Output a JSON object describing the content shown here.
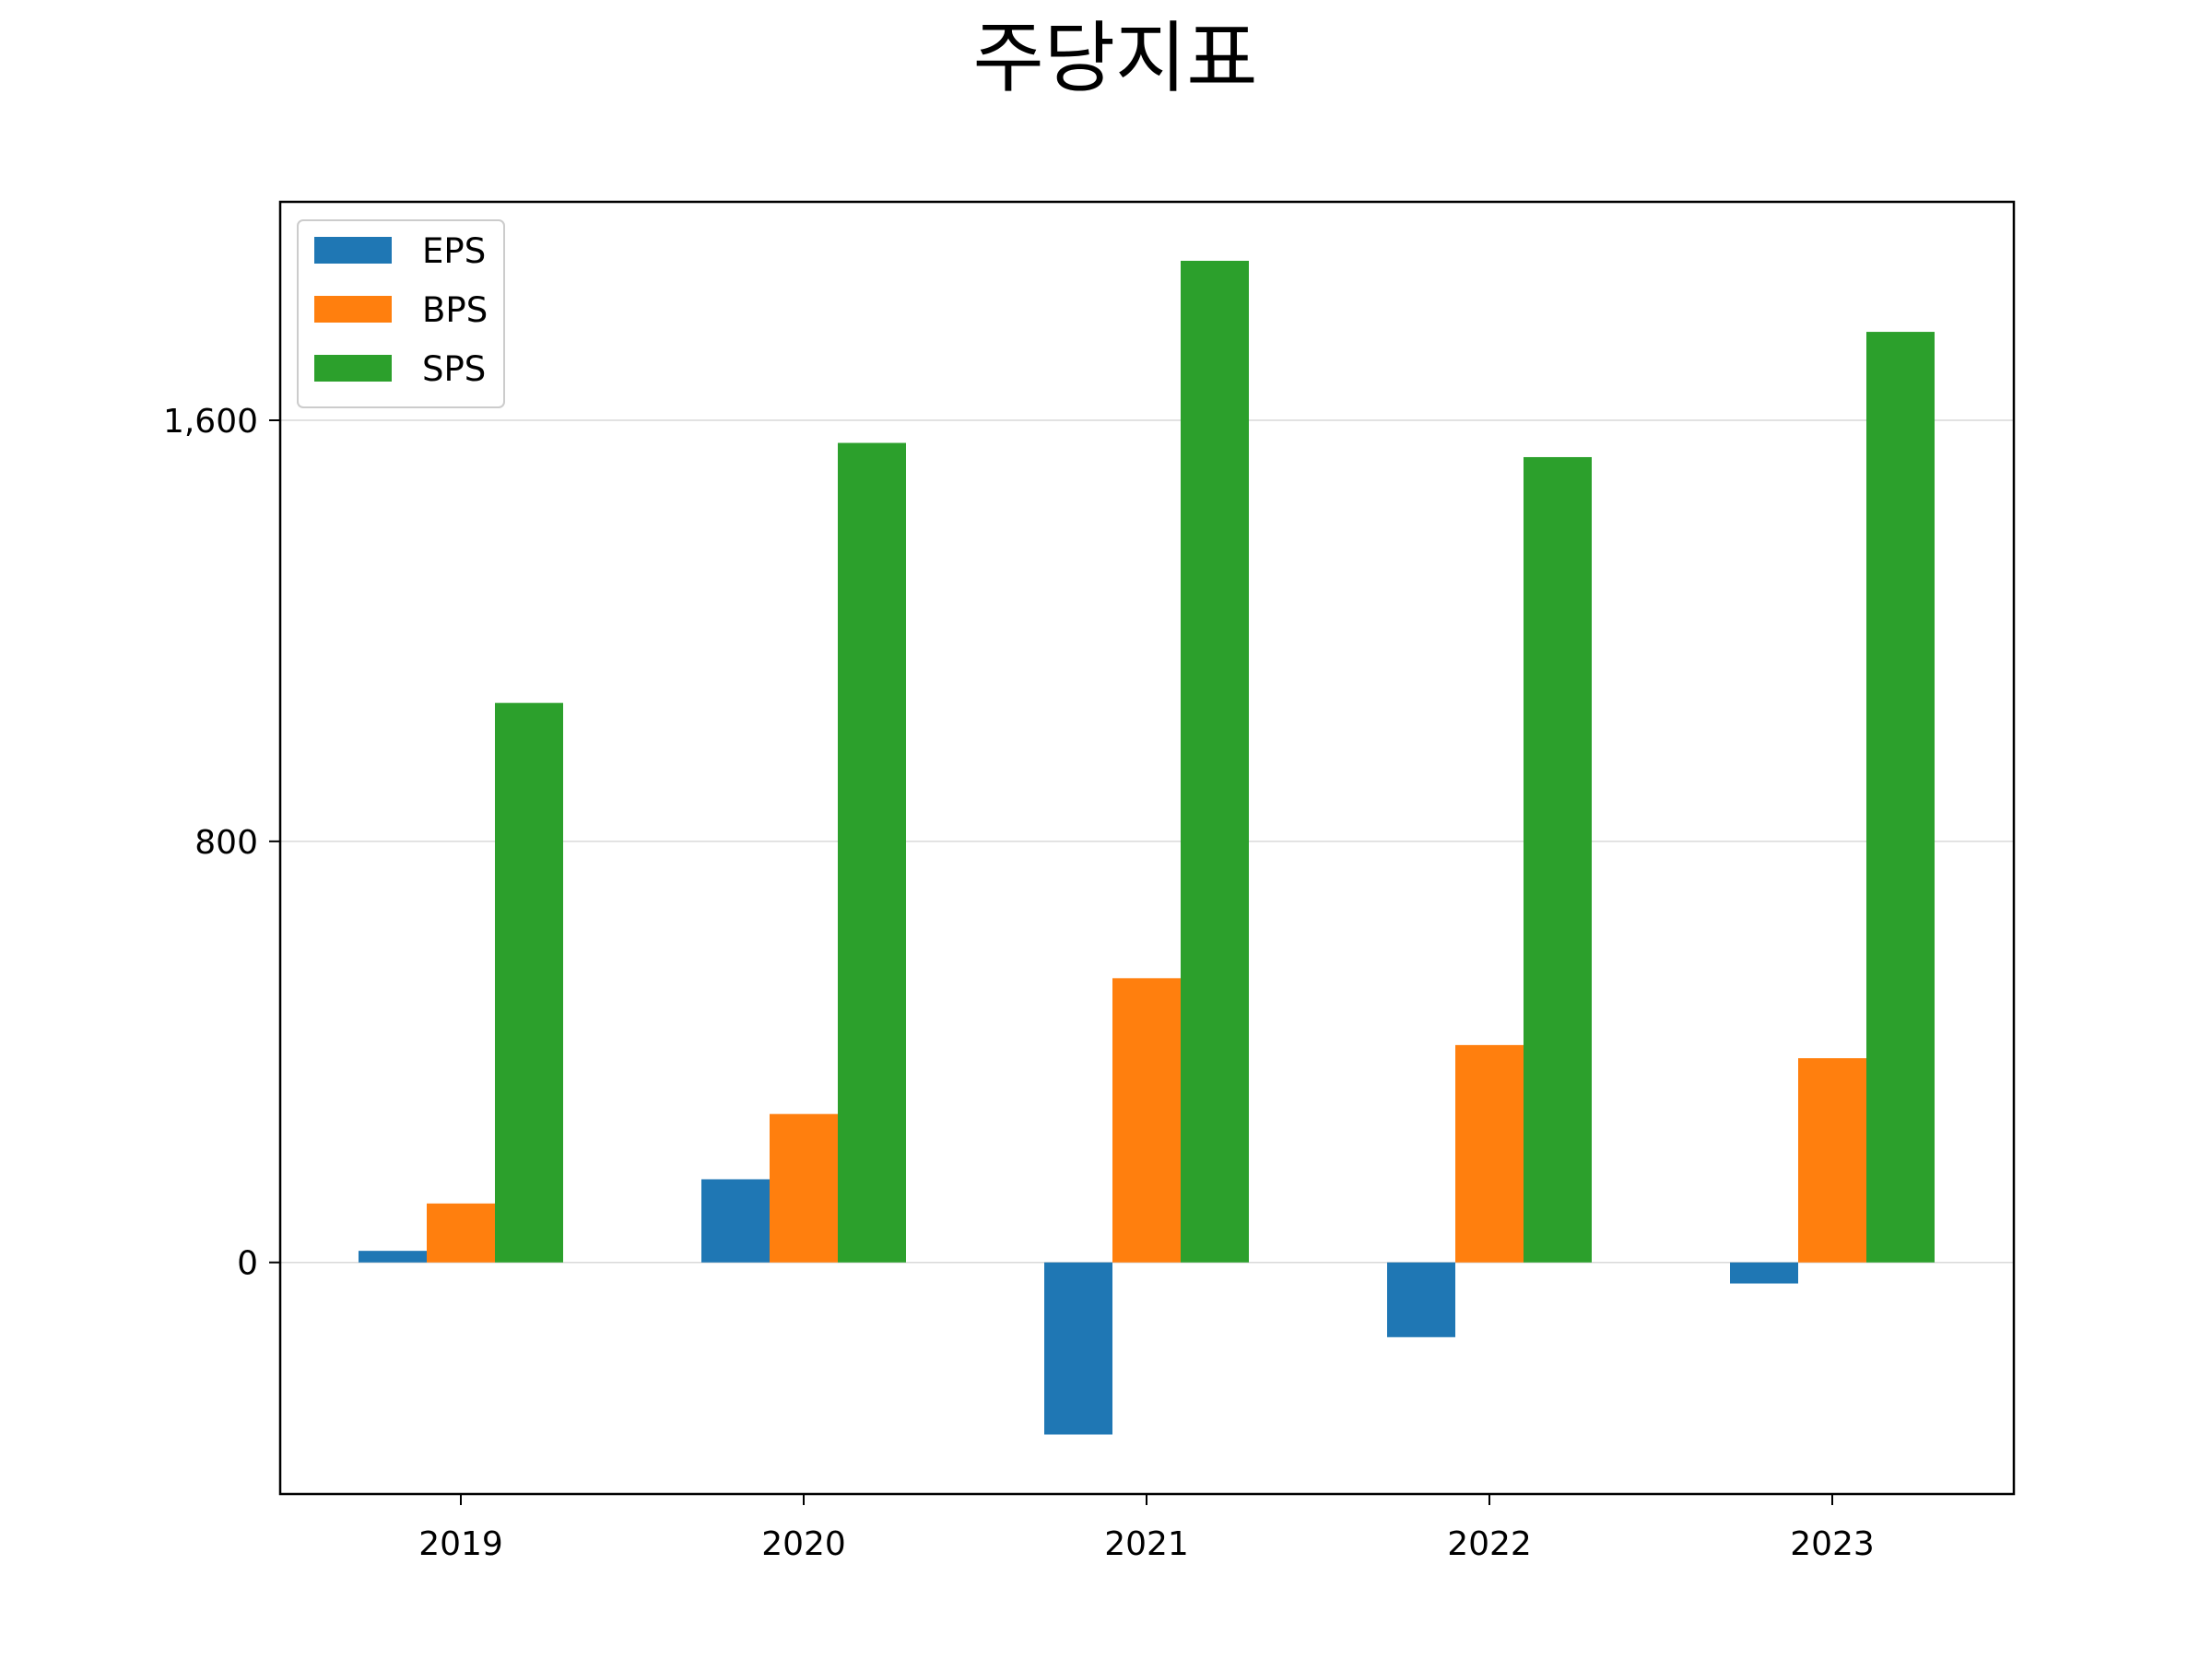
{
  "chart_data": {
    "type": "bar",
    "title": "주당지표",
    "xlabel": "",
    "ylabel": "",
    "categories": [
      "2019",
      "2020",
      "2021",
      "2022",
      "2023"
    ],
    "series": [
      {
        "name": "EPS",
        "color": "#1f77b4",
        "values": [
          22,
          158,
          -327,
          -142,
          -40
        ]
      },
      {
        "name": "BPS",
        "color": "#ff7f0e",
        "values": [
          112,
          282,
          540,
          413,
          388
        ]
      },
      {
        "name": "SPS",
        "color": "#2ca02c",
        "values": [
          1063,
          1557,
          1903,
          1530,
          1768
        ]
      }
    ],
    "ylim": [
      -440,
      2015
    ],
    "yticks": [
      0,
      800,
      1600
    ],
    "ytick_labels": [
      "0",
      "800",
      "1,600"
    ],
    "grid": {
      "y": true,
      "x": false,
      "color": "#d9d9d9"
    },
    "legend": {
      "position": "upper-left"
    }
  }
}
